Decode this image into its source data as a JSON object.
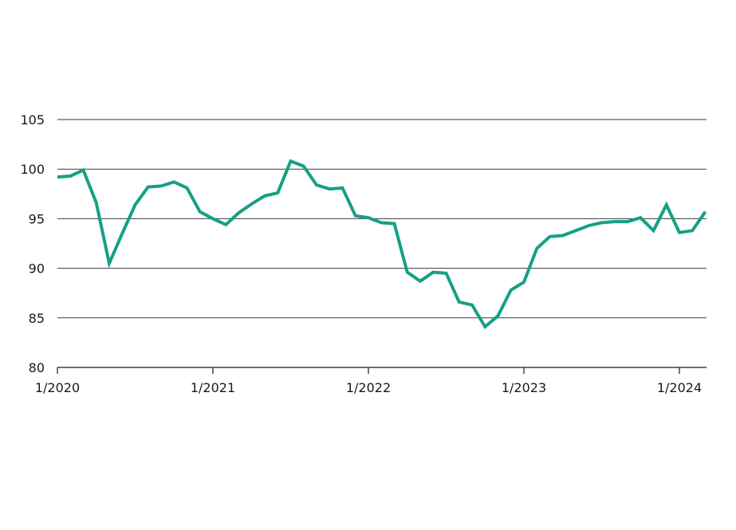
{
  "chart_data": {
    "type": "line",
    "title": "",
    "xlabel": "",
    "ylabel": "",
    "ylim": [
      80,
      105
    ],
    "yticks": [
      80,
      85,
      90,
      95,
      100,
      105
    ],
    "xticks": [
      {
        "label": "1/2020",
        "month_index": 0
      },
      {
        "label": "1/2021",
        "month_index": 12
      },
      {
        "label": "1/2022",
        "month_index": 24
      },
      {
        "label": "1/2023",
        "month_index": 36
      },
      {
        "label": "1/2024",
        "month_index": 48
      }
    ],
    "grid": "horizontal",
    "legend": "none",
    "colors": {
      "series": "#16a085",
      "grid": "#3a3a3a",
      "axis": "#1a1a1a",
      "text": "#1a1a1a"
    },
    "series": [
      {
        "x": [
          "2020-01",
          "2020-02",
          "2020-03",
          "2020-04",
          "2020-05",
          "2020-06",
          "2020-07",
          "2020-08",
          "2020-09",
          "2020-10",
          "2020-11",
          "2020-12",
          "2021-01",
          "2021-02",
          "2021-03",
          "2021-04",
          "2021-05",
          "2021-06",
          "2021-07",
          "2021-08",
          "2021-09",
          "2021-10",
          "2021-11",
          "2021-12",
          "2022-01",
          "2022-02",
          "2022-03",
          "2022-04",
          "2022-05",
          "2022-06",
          "2022-07",
          "2022-08",
          "2022-09",
          "2022-10",
          "2022-11",
          "2022-12",
          "2023-01",
          "2023-02",
          "2023-03",
          "2023-04",
          "2023-05",
          "2023-06",
          "2023-07",
          "2023-08",
          "2023-09",
          "2023-10",
          "2023-11",
          "2023-12",
          "2024-01",
          "2024-02",
          "2024-03"
        ],
        "values": [
          99.2,
          99.3,
          99.9,
          96.6,
          90.5,
          93.5,
          96.4,
          98.2,
          98.3,
          98.7,
          98.1,
          95.7,
          95.0,
          94.4,
          95.6,
          96.5,
          97.3,
          97.6,
          100.8,
          100.3,
          98.4,
          98.0,
          98.1,
          95.3,
          95.1,
          94.6,
          94.5,
          89.6,
          88.7,
          89.6,
          89.5,
          86.6,
          86.3,
          84.1,
          85.2,
          87.8,
          88.6,
          92.0,
          93.2,
          93.3,
          93.8,
          94.3,
          94.6,
          94.7,
          94.7,
          95.1,
          93.8,
          96.4,
          93.6,
          93.8,
          95.7
        ]
      }
    ]
  }
}
